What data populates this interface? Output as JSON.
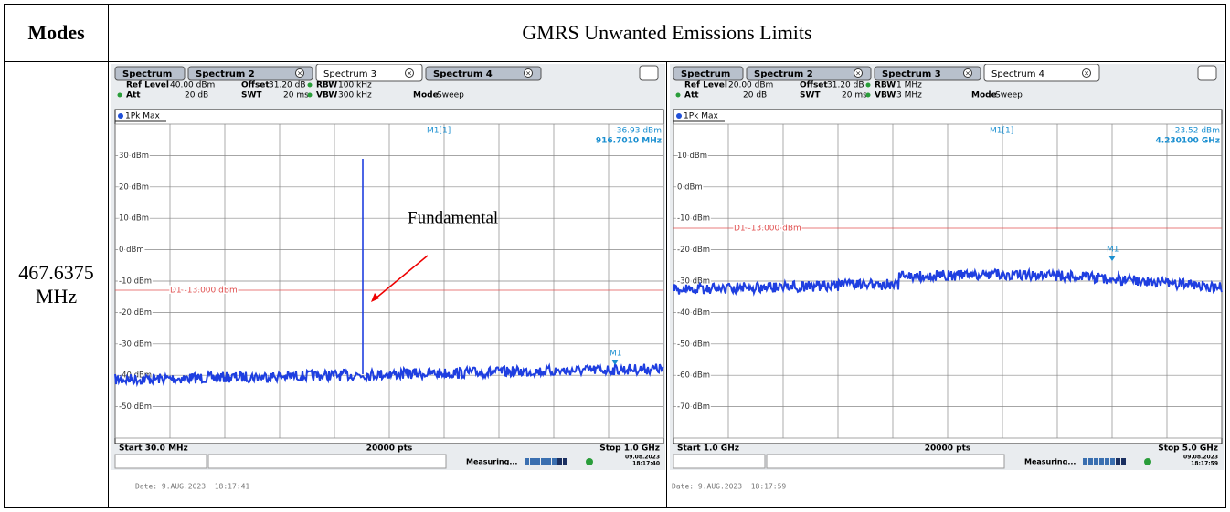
{
  "header": {
    "modes": "Modes",
    "title": "GMRS Unwanted Emissions Limits"
  },
  "row": {
    "mode": "467.6375 MHz"
  },
  "screens": [
    {
      "tabs": [
        "Spectrum",
        "Spectrum 2",
        "Spectrum 3",
        "Spectrum 4"
      ],
      "active_tab": 2,
      "settings": {
        "ref_level_label": "Ref Level",
        "ref_level": "40.00 dBm",
        "offset_label": "Offset",
        "offset": "31.20 dB",
        "rbw_label": "RBW",
        "rbw": "100 kHz",
        "att_label": "Att",
        "att": "20 dB",
        "swt_label": "SWT",
        "swt": "20 ms",
        "vbw_label": "VBW",
        "vbw": "300 kHz",
        "mode_label": "Mode",
        "mode": "Sweep"
      },
      "trace": "1Pk Max",
      "marker": {
        "name": "M1[1]",
        "level": "-36.93 dBm",
        "freq": "916.7010 MHz",
        "label": "M1"
      },
      "y_labels": [
        "30 dBm",
        "20 dBm",
        "10 dBm",
        "0 dBm",
        "-10 dBm",
        "-20 dBm",
        "-30 dBm",
        "-40 dBm",
        "-50 dBm"
      ],
      "display_line": "D1 -13.000 dBm",
      "start": "Start 30.0 MHz",
      "points": "20000 pts",
      "stop": "Stop 1.0 GHz",
      "status": "Measuring...",
      "device_date": "09.08.2023",
      "device_time": "18:17:40",
      "date": "Date: 9.AUG.2023  18:17:41",
      "annotation": "Fundamental"
    },
    {
      "tabs": [
        "Spectrum",
        "Spectrum 2",
        "Spectrum 3",
        "Spectrum 4"
      ],
      "active_tab": 3,
      "settings": {
        "ref_level_label": "Ref Level",
        "ref_level": "20.00 dBm",
        "offset_label": "Offset",
        "offset": "31.20 dB",
        "rbw_label": "RBW",
        "rbw": "1 MHz",
        "att_label": "Att",
        "att": "20 dB",
        "swt_label": "SWT",
        "swt": "20 ms",
        "vbw_label": "VBW",
        "vbw": "3 MHz",
        "mode_label": "Mode",
        "mode": "Sweep"
      },
      "trace": "1Pk Max",
      "marker": {
        "name": "M1[1]",
        "level": "-23.52 dBm",
        "freq": "4.230100 GHz",
        "label": "M1"
      },
      "y_labels": [
        "10 dBm",
        "0 dBm",
        "-10 dBm",
        "-20 dBm",
        "-30 dBm",
        "-40 dBm",
        "-50 dBm",
        "-60 dBm",
        "-70 dBm"
      ],
      "display_line": "D1 -13.000 dBm",
      "start": "Start 1.0 GHz",
      "points": "20000 pts",
      "stop": "Stop 5.0 GHz",
      "status": "Measuring...",
      "device_date": "09.08.2023",
      "device_time": "18:17:59",
      "date": "Date: 9.AUG.2023  18:17:59"
    }
  ]
}
